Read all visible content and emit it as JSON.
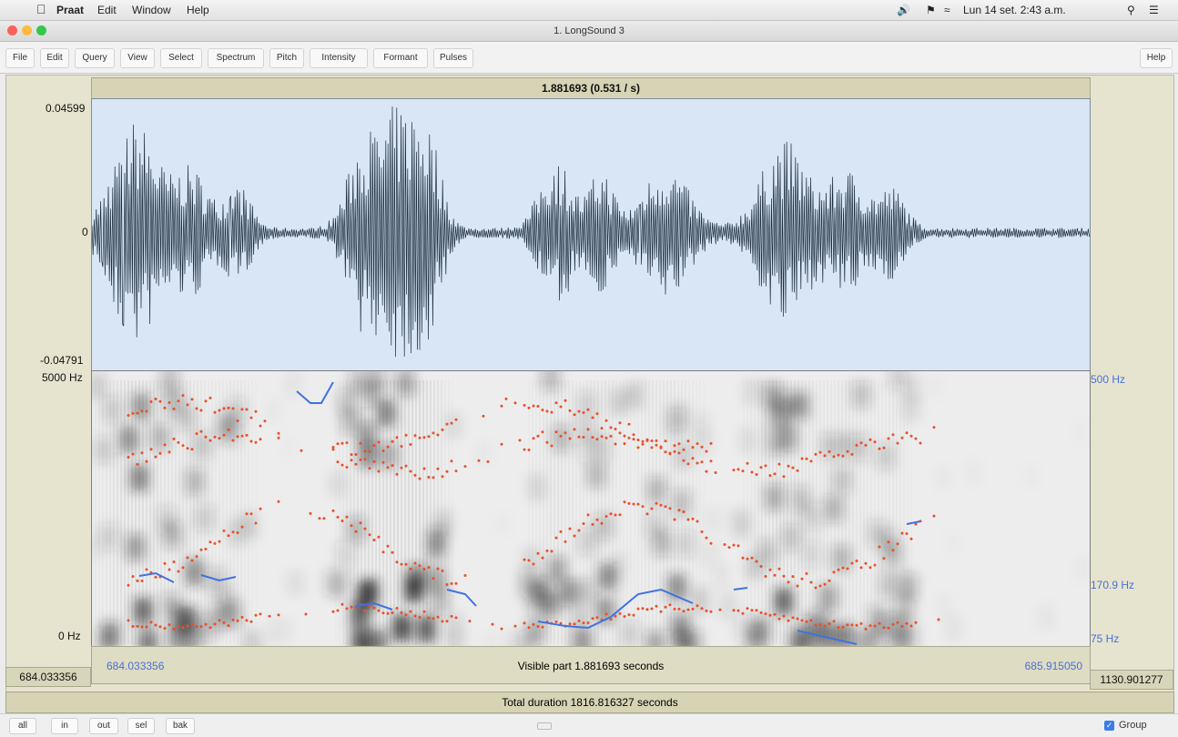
{
  "menubar": {
    "app": "Praat",
    "items": [
      "Edit",
      "Window",
      "Help"
    ],
    "clock": "Lun 14 set. 2:43 a.m."
  },
  "window": {
    "title": "1. LongSound 3"
  },
  "toolbar": {
    "items": [
      "File",
      "Edit",
      "Query",
      "View",
      "Select",
      "Spectrum",
      "Pitch",
      "Intensity",
      "Formant",
      "Pulses"
    ],
    "help": "Help"
  },
  "editor": {
    "selection_label": "1.881693 (0.531 / s)",
    "wave_max": "0.04599",
    "wave_zero": "0",
    "wave_min": "-0.04791",
    "spec_top": "5000 Hz",
    "spec_bottom": "0 Hz",
    "pitch_top": "500 Hz",
    "pitch_mid": "170.9 Hz",
    "pitch_bottom": "75 Hz",
    "visible_start": "684.033356",
    "visible_end": "685.915050",
    "visible_label": "Visible part 1.881693 seconds",
    "left_time": "684.033356",
    "right_time": "1130.901277",
    "total_label": "Total duration 1816.816327 seconds"
  },
  "bottom": {
    "buttons": [
      "all",
      "in",
      "out",
      "sel",
      "bak"
    ],
    "group_label": "Group"
  },
  "colors": {
    "waveform_bg": "#d8e6f6",
    "formant": "#e8502a",
    "pitch": "#3f72e0"
  }
}
